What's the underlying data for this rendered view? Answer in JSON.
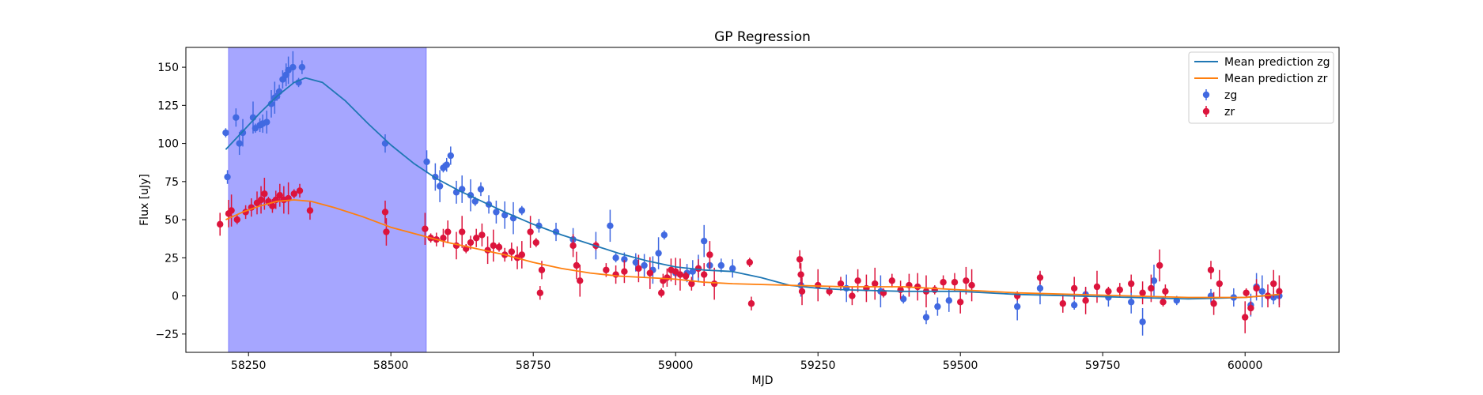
{
  "chart_data": {
    "type": "scatter",
    "title": "GP Regression",
    "xlabel": "MJD",
    "ylabel": "Flux [uJy]",
    "xlim": [
      58140,
      60165
    ],
    "ylim": [
      -37,
      163
    ],
    "xticks": [
      58250,
      58500,
      58750,
      59000,
      59250,
      59500,
      59750,
      60000
    ],
    "yticks": [
      -25,
      0,
      25,
      50,
      75,
      100,
      125,
      150
    ],
    "shaded_region": {
      "x": [
        58215,
        58562
      ],
      "color": "#a6a6ff"
    },
    "legend_position": "upper right",
    "series": [
      {
        "name": "Mean prediction zg",
        "kind": "line",
        "color": "#1f77b4",
        "x": [
          58210,
          58240,
          58270,
          58300,
          58330,
          58350,
          58380,
          58420,
          58460,
          58500,
          58540,
          58580,
          58620,
          58660,
          58700,
          58750,
          58800,
          58850,
          58900,
          58950,
          59000,
          59050,
          59100,
          59150,
          59200,
          59250,
          59300,
          59400,
          59500,
          59600,
          59700,
          59800,
          59900,
          60000,
          60060
        ],
        "y": [
          96,
          108,
          120,
          131,
          140,
          143,
          140,
          128,
          113,
          99,
          87,
          77,
          69,
          62,
          55,
          47,
          40,
          34,
          28,
          23,
          19,
          17,
          16,
          12,
          7,
          5,
          4,
          3,
          3,
          1,
          0,
          -1,
          -2,
          -1,
          1
        ]
      },
      {
        "name": "Mean prediction zr",
        "kind": "line",
        "color": "#ff7f0e",
        "x": [
          58210,
          58240,
          58270,
          58300,
          58330,
          58360,
          58400,
          58450,
          58500,
          58550,
          58600,
          58650,
          58700,
          58750,
          58800,
          58850,
          58900,
          58950,
          59000,
          59050,
          59100,
          59200,
          59300,
          59400,
          59500,
          59600,
          59700,
          59800,
          59900,
          60000,
          60060
        ],
        "y": [
          50,
          55,
          59,
          62,
          63,
          62,
          58,
          52,
          45,
          40,
          35,
          31,
          27,
          22,
          18,
          15,
          13,
          12,
          11,
          9,
          8,
          7,
          6,
          6,
          4,
          2,
          1,
          0,
          -1,
          -1,
          1
        ]
      },
      {
        "name": "zg",
        "kind": "errorbar",
        "color": "#4169e1",
        "x": [
          58210,
          58213,
          58228,
          58234,
          58240,
          58258,
          58262,
          58270,
          58275,
          58282,
          58290,
          58296,
          58300,
          58304,
          58310,
          58316,
          58320,
          58328,
          58338,
          58344,
          58490,
          58563,
          58578,
          58586,
          58592,
          58598,
          58605,
          58615,
          58625,
          58640,
          58648,
          58658,
          58672,
          58685,
          58700,
          58715,
          58730,
          58760,
          58790,
          58820,
          58860,
          58885,
          58895,
          58910,
          58930,
          58945,
          58960,
          58970,
          58980,
          59000,
          59020,
          59030,
          59040,
          59050,
          59060,
          59080,
          59100,
          59220,
          59300,
          59360,
          59400,
          59440,
          59460,
          59480,
          59600,
          59640,
          59700,
          59720,
          59760,
          59800,
          59820,
          59840,
          59880,
          59940,
          59980,
          60010,
          60020,
          60030,
          60040,
          60050,
          60060
        ],
        "y": [
          107,
          78,
          117,
          100,
          107,
          117,
          110,
          112,
          113,
          114,
          126,
          130,
          131,
          134,
          142,
          145,
          148,
          150,
          140,
          150,
          100,
          88,
          78,
          72,
          84,
          86,
          92,
          68,
          70,
          66,
          62,
          70,
          60,
          55,
          53,
          51,
          56,
          46,
          42,
          37,
          33,
          46,
          25,
          24,
          22,
          20,
          17,
          28,
          40,
          15,
          15,
          16,
          18,
          36,
          20,
          20,
          18,
          7,
          5,
          3,
          -2,
          -14,
          -7,
          -3,
          -7,
          5,
          -6,
          1,
          -1,
          -4,
          -17,
          10,
          -3,
          0,
          -1,
          -6,
          6,
          3,
          0,
          -1,
          0
        ]
      },
      {
        "name": "zr",
        "kind": "errorbar",
        "color": "#dc143c",
        "x": [
          58200,
          58215,
          58220,
          58230,
          58245,
          58255,
          58265,
          58272,
          58278,
          58285,
          58292,
          58298,
          58305,
          58312,
          58320,
          58330,
          58340,
          58358,
          58490,
          58492,
          58560,
          58570,
          58580,
          58592,
          58600,
          58615,
          58625,
          58632,
          58640,
          58650,
          58660,
          58670,
          58680,
          58690,
          58700,
          58712,
          58722,
          58730,
          58745,
          58755,
          58762,
          58765,
          58820,
          58826,
          58832,
          58860,
          58878,
          58895,
          58910,
          58935,
          58955,
          58975,
          58978,
          58985,
          58992,
          59000,
          59008,
          59018,
          59028,
          59040,
          59050,
          59060,
          59068,
          59130,
          59133,
          59218,
          59220,
          59222,
          59250,
          59270,
          59290,
          59310,
          59320,
          59335,
          59350,
          59365,
          59380,
          59395,
          59410,
          59425,
          59440,
          59455,
          59470,
          59490,
          59500,
          59510,
          59520,
          59600,
          59640,
          59680,
          59700,
          59720,
          59740,
          59760,
          59780,
          59800,
          59820,
          59835,
          59850,
          59856,
          59860,
          59940,
          59945,
          59955,
          60000,
          60002,
          60010,
          60020,
          60040,
          60050,
          60060
        ],
        "y": [
          47,
          54,
          56,
          50,
          55,
          58,
          61,
          63,
          67,
          62,
          59,
          63,
          66,
          63,
          64,
          67,
          69,
          56,
          55,
          42,
          44,
          38,
          37,
          38,
          42,
          33,
          42,
          31,
          35,
          38,
          40,
          30,
          33,
          32,
          27,
          29,
          25,
          27,
          42,
          35,
          2,
          17,
          33,
          20,
          10,
          33,
          17,
          14,
          16,
          18,
          15,
          2,
          10,
          12,
          17,
          16,
          14,
          13,
          8,
          18,
          14,
          27,
          8,
          22,
          -5,
          24,
          14,
          3,
          7,
          3,
          8,
          0,
          10,
          5,
          8,
          2,
          10,
          4,
          7,
          6,
          3,
          4,
          9,
          9,
          -4,
          10,
          7,
          0,
          12,
          -5,
          5,
          -3,
          6,
          3,
          4,
          8,
          2,
          5,
          20,
          -4,
          3,
          17,
          -5,
          8,
          -14,
          2,
          -8,
          5,
          0,
          8,
          3
        ]
      }
    ]
  }
}
